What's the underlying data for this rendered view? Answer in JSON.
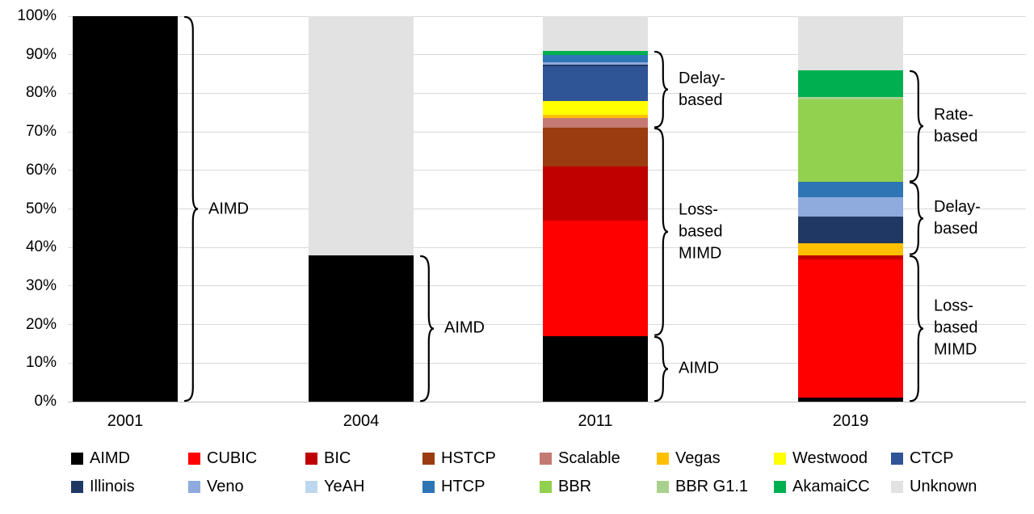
{
  "chart_data": {
    "type": "bar",
    "variant": "stacked-percent",
    "title": "",
    "xlabel": "",
    "ylabel": "",
    "ylim": [
      0,
      100
    ],
    "grid": true,
    "legend_position": "bottom",
    "yticks": [
      "0%",
      "10%",
      "20%",
      "30%",
      "40%",
      "50%",
      "60%",
      "70%",
      "80%",
      "90%",
      "100%"
    ],
    "categories": [
      "2001",
      "2004",
      "2011",
      "2019"
    ],
    "series": [
      {
        "name": "AIMD",
        "color": "#000000",
        "values": [
          100,
          38,
          17,
          1
        ]
      },
      {
        "name": "CUBIC",
        "color": "#FF0000",
        "values": [
          0,
          0,
          30,
          36
        ]
      },
      {
        "name": "BIC",
        "color": "#C00000",
        "values": [
          0,
          0,
          14,
          1
        ]
      },
      {
        "name": "HSTCP",
        "color": "#9A3B10",
        "values": [
          0,
          0,
          10,
          0
        ]
      },
      {
        "name": "Scalable",
        "color": "#C47A72",
        "values": [
          0,
          0,
          2.5,
          0
        ]
      },
      {
        "name": "Vegas",
        "color": "#FFC000",
        "values": [
          0,
          0,
          1,
          3
        ]
      },
      {
        "name": "Westwood",
        "color": "#FFFF00",
        "values": [
          0,
          0,
          3.5,
          0
        ]
      },
      {
        "name": "CTCP",
        "color": "#2F5597",
        "values": [
          0,
          0,
          9,
          0
        ]
      },
      {
        "name": "Illinois",
        "color": "#1F3864",
        "values": [
          0,
          0,
          0.5,
          7
        ]
      },
      {
        "name": "Veno",
        "color": "#8FAADC",
        "values": [
          0,
          0,
          0.5,
          5
        ]
      },
      {
        "name": "YeAH",
        "color": "#BDD7EE",
        "values": [
          0,
          0,
          0,
          0
        ]
      },
      {
        "name": "HTCP",
        "color": "#2E75B6",
        "values": [
          0,
          0,
          2,
          4
        ]
      },
      {
        "name": "BBR",
        "color": "#92D050",
        "values": [
          0,
          0,
          0,
          21.5
        ]
      },
      {
        "name": "BBR G1.1",
        "color": "#A9D18E",
        "values": [
          0,
          0,
          0,
          0.5
        ]
      },
      {
        "name": "AkamaiCC",
        "color": "#00B050",
        "values": [
          0,
          0,
          1,
          7
        ]
      },
      {
        "name": "Unknown",
        "color": "#E2E2E2",
        "values": [
          0,
          62,
          9,
          14
        ]
      }
    ],
    "annotations": [
      {
        "bar": 0,
        "from": 0,
        "to": 100,
        "lines": [
          "AIMD"
        ]
      },
      {
        "bar": 1,
        "from": 0,
        "to": 38,
        "lines": [
          "AIMD"
        ]
      },
      {
        "bar": 2,
        "from": 71,
        "to": 91,
        "lines": [
          "Delay-",
          "based"
        ]
      },
      {
        "bar": 2,
        "from": 17,
        "to": 71,
        "lines": [
          "Loss-",
          "based",
          "MIMD"
        ]
      },
      {
        "bar": 2,
        "from": 0,
        "to": 17,
        "lines": [
          "AIMD"
        ]
      },
      {
        "bar": 3,
        "from": 57,
        "to": 86,
        "lines": [
          "Rate-",
          "based"
        ]
      },
      {
        "bar": 3,
        "from": 38,
        "to": 57,
        "lines": [
          "Delay-",
          "based"
        ]
      },
      {
        "bar": 3,
        "from": 0,
        "to": 38,
        "lines": [
          "Loss-",
          "based",
          "MIMD"
        ]
      }
    ]
  }
}
